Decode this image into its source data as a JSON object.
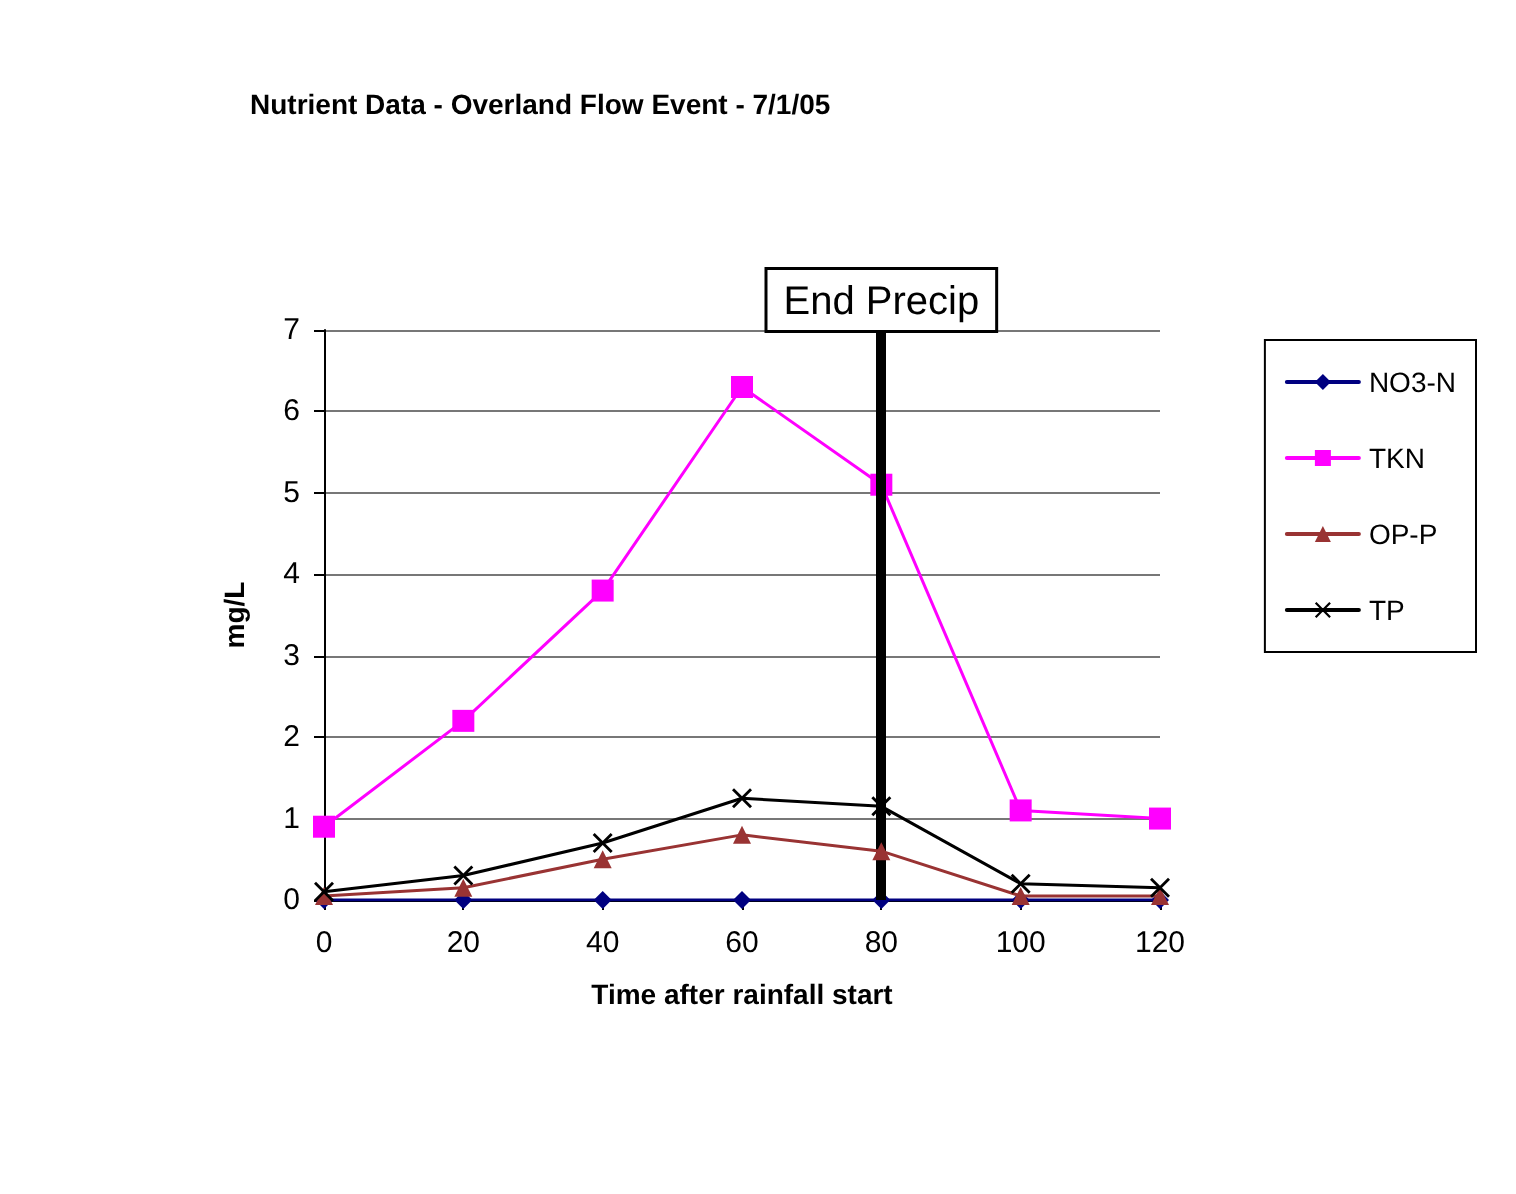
{
  "chart_data": {
    "type": "line",
    "title": "Nutrient Data - Overland Flow Event - 7/1/05",
    "xlabel": "Time after rainfall start",
    "ylabel": "mg/L",
    "x": [
      0,
      20,
      40,
      60,
      80,
      100,
      120
    ],
    "series": [
      {
        "name": "NO3-N",
        "color": "#000080",
        "marker": "diamond",
        "values": [
          0,
          0,
          0,
          0,
          0,
          0,
          0
        ]
      },
      {
        "name": "TKN",
        "color": "#ff00ff",
        "marker": "square",
        "values": [
          0.9,
          2.2,
          3.8,
          6.3,
          5.1,
          1.1,
          1.0
        ]
      },
      {
        "name": "OP-P",
        "color": "#993333",
        "marker": "triangle",
        "values": [
          0.05,
          0.15,
          0.5,
          0.8,
          0.6,
          0.05,
          0.05
        ]
      },
      {
        "name": "TP",
        "color": "#000000",
        "marker": "cross",
        "values": [
          0.1,
          0.3,
          0.7,
          1.25,
          1.15,
          0.2,
          0.15
        ]
      }
    ],
    "xlim": [
      0,
      120
    ],
    "xticks": [
      0,
      20,
      40,
      60,
      80,
      100,
      120
    ],
    "ylim": [
      0,
      7
    ],
    "yticks": [
      0,
      1,
      2,
      3,
      4,
      5,
      6,
      7
    ],
    "ref_lines": [
      {
        "axis": "x",
        "value": 80,
        "label": "End Precip",
        "color": "#000000"
      }
    ],
    "grid": "y",
    "legend": "right",
    "line_style": "solid"
  }
}
